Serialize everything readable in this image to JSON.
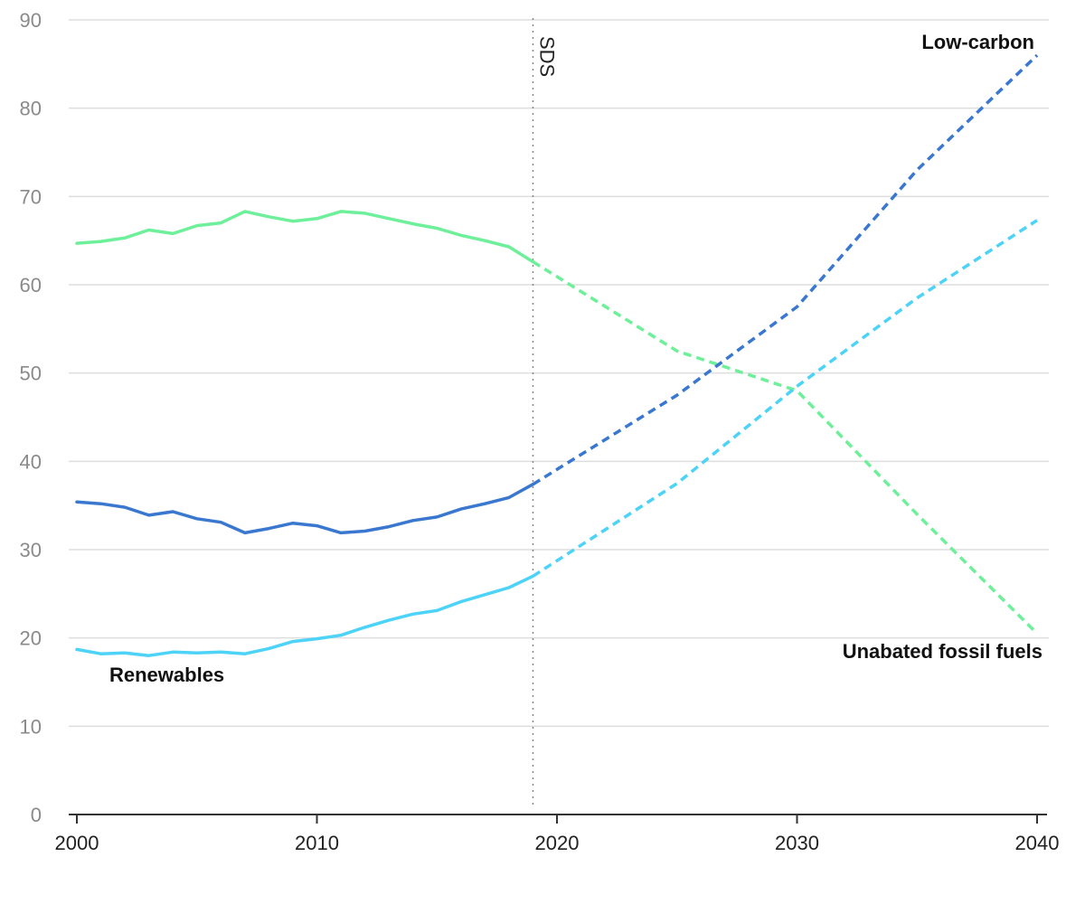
{
  "chart_data": {
    "type": "line",
    "title": "",
    "xlabel": "",
    "ylabel": "",
    "xlim": [
      2000,
      2040
    ],
    "ylim": [
      0,
      90
    ],
    "x_ticks": [
      "2000",
      "2010",
      "2020",
      "2030",
      "2040"
    ],
    "y_ticks": [
      "0",
      "10",
      "20",
      "30",
      "40",
      "50",
      "60",
      "70",
      "80",
      "90"
    ],
    "grid": true,
    "vertical_marker": {
      "x": 2019,
      "label": "SDS"
    },
    "series": [
      {
        "name": "Unabated fossil fuels",
        "color": "#6ef09a",
        "historical": [
          [
            2000,
            64.7
          ],
          [
            2001,
            64.9
          ],
          [
            2002,
            65.3
          ],
          [
            2003,
            66.2
          ],
          [
            2004,
            65.8
          ],
          [
            2005,
            66.7
          ],
          [
            2006,
            67.0
          ],
          [
            2007,
            68.3
          ],
          [
            2008,
            67.7
          ],
          [
            2009,
            67.2
          ],
          [
            2010,
            67.5
          ],
          [
            2011,
            68.3
          ],
          [
            2012,
            68.1
          ],
          [
            2013,
            67.5
          ],
          [
            2014,
            66.9
          ],
          [
            2015,
            66.4
          ],
          [
            2016,
            65.6
          ],
          [
            2017,
            65.0
          ],
          [
            2018,
            64.3
          ],
          [
            2019,
            62.6
          ]
        ],
        "projection": [
          [
            2019,
            62.6
          ],
          [
            2025,
            52.5
          ],
          [
            2030,
            48.0
          ],
          [
            2035,
            34.0
          ],
          [
            2040,
            20.5
          ]
        ]
      },
      {
        "name": "Low-carbon",
        "color": "#3a78d0",
        "historical": [
          [
            2000,
            35.4
          ],
          [
            2001,
            35.2
          ],
          [
            2002,
            34.8
          ],
          [
            2003,
            33.9
          ],
          [
            2004,
            34.3
          ],
          [
            2005,
            33.5
          ],
          [
            2006,
            33.1
          ],
          [
            2007,
            31.9
          ],
          [
            2008,
            32.4
          ],
          [
            2009,
            33.0
          ],
          [
            2010,
            32.7
          ],
          [
            2011,
            31.9
          ],
          [
            2012,
            32.1
          ],
          [
            2013,
            32.6
          ],
          [
            2014,
            33.3
          ],
          [
            2015,
            33.7
          ],
          [
            2016,
            34.6
          ],
          [
            2017,
            35.2
          ],
          [
            2018,
            35.9
          ],
          [
            2019,
            37.4
          ]
        ],
        "projection": [
          [
            2019,
            37.4
          ],
          [
            2025,
            47.5
          ],
          [
            2030,
            57.5
          ],
          [
            2035,
            73.0
          ],
          [
            2040,
            86.0
          ]
        ]
      },
      {
        "name": "Renewables",
        "color": "#4dd3f7",
        "historical": [
          [
            2000,
            18.7
          ],
          [
            2001,
            18.2
          ],
          [
            2002,
            18.3
          ],
          [
            2003,
            18.0
          ],
          [
            2004,
            18.4
          ],
          [
            2005,
            18.3
          ],
          [
            2006,
            18.4
          ],
          [
            2007,
            18.2
          ],
          [
            2008,
            18.8
          ],
          [
            2009,
            19.6
          ],
          [
            2010,
            19.9
          ],
          [
            2011,
            20.3
          ],
          [
            2012,
            21.2
          ],
          [
            2013,
            22.0
          ],
          [
            2014,
            22.7
          ],
          [
            2015,
            23.1
          ],
          [
            2016,
            24.1
          ],
          [
            2017,
            24.9
          ],
          [
            2018,
            25.7
          ],
          [
            2019,
            27.0
          ]
        ],
        "projection": [
          [
            2019,
            27.0
          ],
          [
            2025,
            37.5
          ],
          [
            2030,
            48.5
          ],
          [
            2035,
            58.5
          ],
          [
            2040,
            67.3
          ]
        ]
      }
    ]
  }
}
